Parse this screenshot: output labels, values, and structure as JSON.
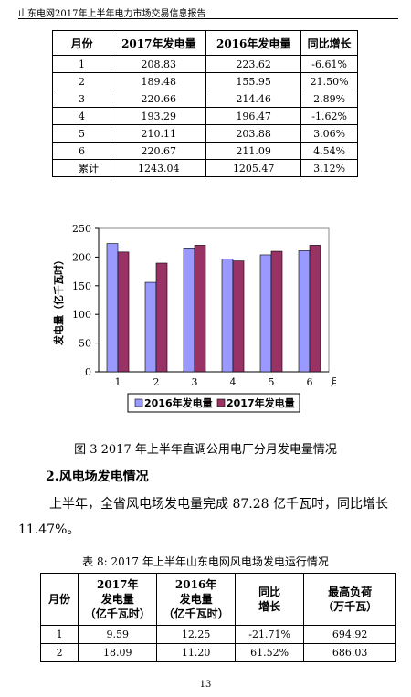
{
  "header": {
    "title": "山东电网2017年上半年电力市场交易信息报告"
  },
  "table1": {
    "headers": [
      "月份",
      "2017年发电量",
      "2016年发电量",
      "同比增长"
    ],
    "rows": [
      [
        "1",
        "208.83",
        "223.62",
        "-6.61%"
      ],
      [
        "2",
        "189.48",
        "155.95",
        "21.50%"
      ],
      [
        "3",
        "220.66",
        "214.46",
        "2.89%"
      ],
      [
        "4",
        "193.29",
        "196.47",
        "-1.62%"
      ],
      [
        "5",
        "210.11",
        "203.88",
        "3.06%"
      ],
      [
        "6",
        "220.67",
        "211.09",
        "4.54%"
      ],
      [
        "累计",
        "1243.04",
        "1205.47",
        "3.12%"
      ]
    ]
  },
  "chart_data": {
    "type": "bar",
    "categories": [
      "1",
      "2",
      "3",
      "4",
      "5",
      "6"
    ],
    "series": [
      {
        "name": "2016年发电量",
        "values": [
          223.62,
          155.95,
          214.46,
          196.47,
          203.88,
          211.09
        ],
        "color": "#9999ff"
      },
      {
        "name": "2017年发电量",
        "values": [
          208.83,
          189.48,
          220.66,
          193.29,
          210.11,
          220.67
        ],
        "color": "#993366"
      }
    ],
    "xlabel": "月份",
    "ylabel": "发电量（亿千瓦时）",
    "ylim": [
      0,
      250
    ],
    "yticks": [
      0,
      50,
      100,
      150,
      200,
      250
    ],
    "grid": false,
    "legend_position": "bottom"
  },
  "figure_caption": "图 3  2017 年上半年直调公用电厂分月发电量情况",
  "section_heading": "2.风电场发电情况",
  "paragraph": "上半年，全省风电场发电量完成 87.28 亿千瓦时，同比增长 11.47%。",
  "table2": {
    "caption": "表 8:  2017 年上半年山东电网风电场发电运行情况",
    "headers": [
      [
        "月份"
      ],
      [
        "2017年",
        "发电量",
        "（亿千瓦时）"
      ],
      [
        "2016年",
        "发电量",
        "（亿千瓦时）"
      ],
      [
        "同比",
        "增长"
      ],
      [
        "最高负荷",
        "（万千瓦）"
      ]
    ],
    "rows": [
      [
        "1",
        "9.59",
        "12.25",
        "-21.71%",
        "694.92"
      ],
      [
        "2",
        "18.09",
        "11.20",
        "61.52%",
        "686.03"
      ]
    ]
  },
  "page_number": "13"
}
